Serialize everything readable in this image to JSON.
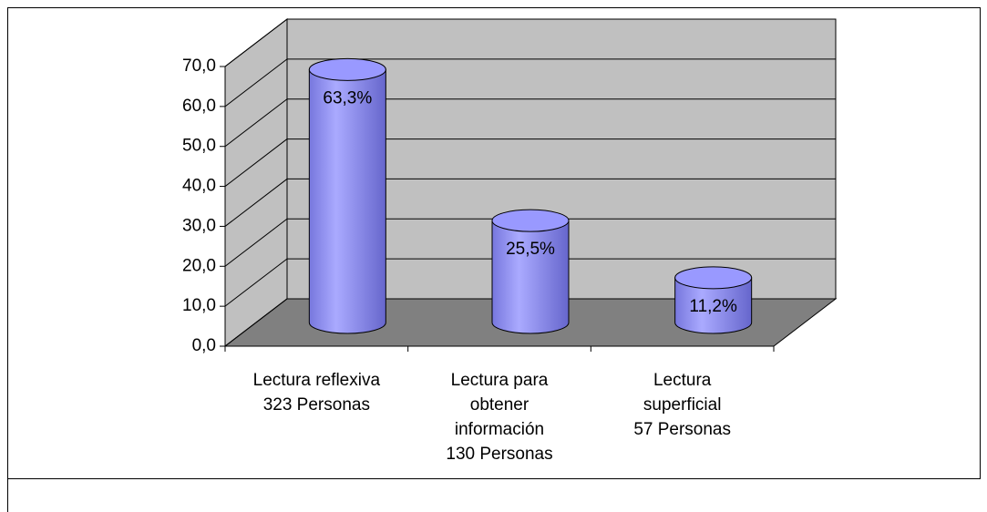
{
  "chart_data": {
    "type": "bar3d",
    "categories": [
      [
        "Lectura reflexiva",
        "323 Personas"
      ],
      [
        "Lectura para",
        "obtener",
        "información",
        "130 Personas"
      ],
      [
        "Lectura",
        "superficial",
        "57 Personas"
      ]
    ],
    "values": [
      63.3,
      25.5,
      11.2
    ],
    "value_labels": [
      "63,3%",
      "25,5%",
      "11,2%"
    ],
    "color": "#9999ff",
    "ylim": [
      0,
      70
    ],
    "yticks": [
      {
        "value": 0,
        "label": "0,0"
      },
      {
        "value": 10,
        "label": "10,0"
      },
      {
        "value": 20,
        "label": "20,0"
      },
      {
        "value": 30,
        "label": "30,0"
      },
      {
        "value": 40,
        "label": "40,0"
      },
      {
        "value": 50,
        "label": "50,0"
      },
      {
        "value": 60,
        "label": "60,0"
      },
      {
        "value": 70,
        "label": "70,0"
      }
    ],
    "grid": true
  }
}
